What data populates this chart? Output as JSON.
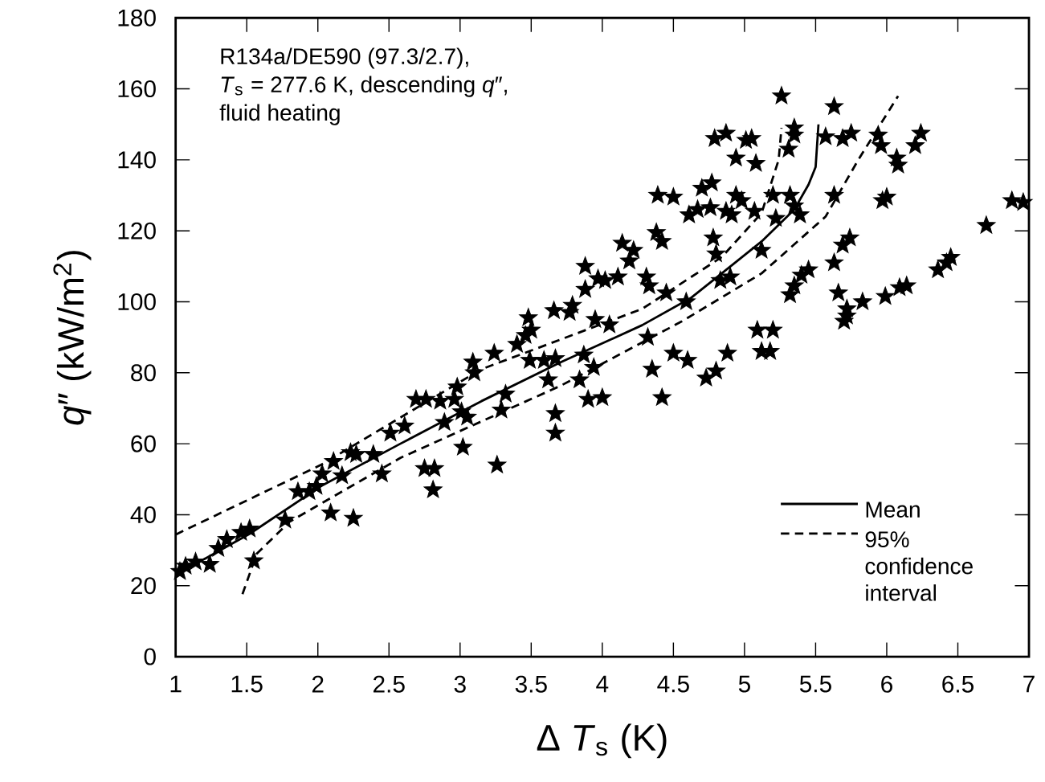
{
  "chart_data": {
    "type": "scatter",
    "xlabel": "Δ *T*$_{s}$ (K)",
    "ylabel": "*q*″ (kW/m$^{2}$)",
    "annotations": [
      "R134a/DE590 (97.3/2.7),",
      "*T*$_{s}$ = 277.6 K, descending *q*″,",
      "fluid heating"
    ],
    "xlim": [
      1,
      7
    ],
    "ylim": [
      0,
      180
    ],
    "xticks": [
      1,
      1.5,
      2,
      2.5,
      3,
      3.5,
      4,
      4.5,
      5,
      5.5,
      6,
      6.5,
      7
    ],
    "yticks": [
      0,
      20,
      40,
      60,
      80,
      100,
      120,
      140,
      160,
      180
    ],
    "legend": "bottom right",
    "series": [
      {
        "marker": "star",
        "color": "#000000",
        "x": [
          1.03,
          1.07,
          1.14,
          1.24,
          1.3,
          1.36,
          1.46,
          1.52,
          1.55,
          1.77,
          1.86,
          1.94,
          1.99,
          2.03,
          2.11,
          2.09,
          2.17,
          2.23,
          2.27,
          2.25,
          2.39,
          2.45,
          2.51,
          2.61,
          2.69,
          2.76,
          2.75,
          2.82,
          2.81,
          2.89,
          2.86,
          2.96,
          2.98,
          3.01,
          3.05,
          3.02,
          3.1,
          3.09,
          3.24,
          3.26,
          3.29,
          3.32,
          3.4,
          3.46,
          3.48,
          3.5,
          3.49,
          3.59,
          3.62,
          3.67,
          3.66,
          3.77,
          3.79,
          3.67,
          3.67,
          3.87,
          3.84,
          3.9,
          3.94,
          3.88,
          3.88,
          3.97,
          4.02,
          4.11,
          3.95,
          4.05,
          4.0,
          4.14,
          4.19,
          4.22,
          4.31,
          4.33,
          4.42,
          4.38,
          4.39,
          4.5,
          4.45,
          4.32,
          4.35,
          4.42,
          4.5,
          4.6,
          4.59,
          4.61,
          4.67,
          4.7,
          4.73,
          4.8,
          4.77,
          4.79,
          4.78,
          4.8,
          4.76,
          4.87,
          4.83,
          4.9,
          4.88,
          4.87,
          4.91,
          4.94,
          4.98,
          4.94,
          5.01,
          5.05,
          5.08,
          5.07,
          5.12,
          5.12,
          5.09,
          5.2,
          5.18,
          5.2,
          5.22,
          5.26,
          5.31,
          5.35,
          5.32,
          5.35,
          5.35,
          5.32,
          5.39,
          5.35,
          5.45,
          5.4,
          5.57,
          5.63,
          5.66,
          5.69,
          5.72,
          5.72,
          5.7,
          5.74,
          5.63,
          5.69,
          5.63,
          5.75,
          5.83,
          5.94,
          5.96,
          6.0,
          5.97,
          5.99,
          6.09,
          6.14,
          6.07,
          6.08,
          6.2,
          6.24,
          6.36,
          6.42,
          6.45,
          6.7,
          6.88,
          6.96
        ],
        "values": [
          24,
          25.5,
          26.7,
          26,
          30.5,
          33,
          35,
          36,
          27,
          38.5,
          46.5,
          46.5,
          48,
          51.5,
          55,
          40.5,
          51,
          57.5,
          57,
          39,
          57,
          51.5,
          63,
          65,
          72.5,
          72.5,
          53,
          53,
          47,
          66,
          72,
          72.5,
          76,
          69,
          67.5,
          59,
          80,
          83,
          85.5,
          54,
          69.5,
          74,
          88,
          90.5,
          95.5,
          92,
          83.5,
          83.5,
          78,
          84,
          97.5,
          97,
          99,
          68.5,
          63,
          85,
          78,
          72.5,
          81.5,
          103.5,
          110,
          106.5,
          106,
          107,
          95,
          93.5,
          73,
          116.5,
          111.5,
          114.5,
          107,
          104.5,
          117,
          119.5,
          130,
          129.5,
          102.5,
          90,
          81,
          73,
          85.5,
          83.5,
          100,
          124.5,
          126,
          132,
          78.5,
          80.5,
          133.5,
          146,
          118,
          113.5,
          126.5,
          125.5,
          106,
          107,
          85.5,
          147.5,
          124.5,
          130,
          128.5,
          140.5,
          145.5,
          146,
          139,
          125.5,
          114.5,
          86,
          92,
          92,
          86,
          130,
          123.5,
          158,
          143,
          147,
          130,
          127,
          104.5,
          102,
          124.5,
          149,
          109,
          107.5,
          146.5,
          111,
          102.5,
          116,
          98,
          96,
          94.5,
          118,
          130,
          146,
          155,
          147.5,
          100,
          147,
          144,
          129.5,
          128.5,
          101.5,
          104,
          104.5,
          140.5,
          138.5,
          144,
          147.5,
          109,
          111,
          112.5,
          121.5,
          128.5,
          128
        ]
      },
      {
        "type": "line",
        "name": "Mean",
        "line_style": "solid",
        "color": "#000000",
        "x": [
          1,
          1.52,
          2.02,
          2.58,
          3.15,
          3.71,
          4.28,
          4.62,
          4.84,
          5.12,
          5.35,
          5.45,
          5.5,
          5.51,
          5.52
        ],
        "values": [
          23,
          34.6,
          48,
          60,
          72,
          83,
          93.4,
          101,
          108,
          117,
          126,
          133,
          138,
          144,
          150
        ]
      },
      {
        "type": "line",
        "name": "95% confidence interval",
        "line_style": "dashed",
        "color": "#000000",
        "x": [
          1,
          2.02,
          3.15,
          4.28,
          4.84,
          5.12,
          5.24,
          5.26
        ],
        "values": [
          34.4,
          54,
          81,
          98,
          112.6,
          125,
          140,
          149
        ]
      },
      {
        "type": "line",
        "line_style": "dashed",
        "color": "#000000",
        "x": [
          1.47,
          1.57,
          1.8,
          2.58,
          3.71,
          4.56,
          5.12,
          5.57,
          5.8,
          6.08
        ],
        "values": [
          17.6,
          29,
          38,
          56,
          76.4,
          94.5,
          108,
          124,
          140,
          158
        ]
      }
    ]
  }
}
